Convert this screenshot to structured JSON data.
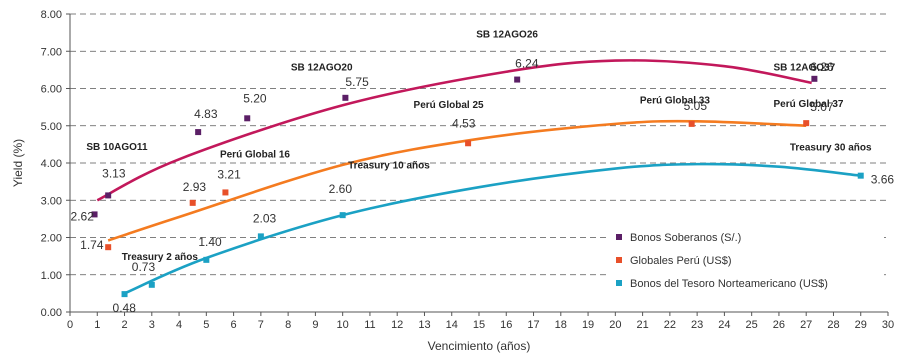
{
  "chart_data": {
    "type": "scatter",
    "xlabel": "Vencimiento (años)",
    "ylabel": "Yield (%)",
    "xlim": [
      0,
      30
    ],
    "ylim": [
      0,
      8
    ],
    "x_ticks": [
      0,
      1,
      2,
      3,
      4,
      5,
      6,
      7,
      8,
      9,
      10,
      11,
      12,
      13,
      14,
      15,
      16,
      17,
      18,
      19,
      20,
      21,
      22,
      23,
      24,
      25,
      26,
      27,
      28,
      29,
      30
    ],
    "y_ticks": [
      "0.00",
      "1.00",
      "2.00",
      "3.00",
      "4.00",
      "5.00",
      "6.00",
      "7.00",
      "8.00"
    ],
    "grid": "horizontal dashed",
    "legend_position": "bottom-right",
    "series": [
      {
        "name": "Bonos Soberanos (S/.)",
        "color": "#5b1f66",
        "trend_color": "#c2185b",
        "points": [
          {
            "x": 0.9,
            "y": 2.62,
            "label": "2.62"
          },
          {
            "x": 1.4,
            "y": 3.13,
            "label": "3.13"
          },
          {
            "x": 4.7,
            "y": 4.83,
            "label": "4.83"
          },
          {
            "x": 6.5,
            "y": 5.2,
            "label": "5.20"
          },
          {
            "x": 10.1,
            "y": 5.75,
            "label": "5.75"
          },
          {
            "x": 16.4,
            "y": 6.24,
            "label": "6.24"
          },
          {
            "x": 27.3,
            "y": 6.26,
            "label": "6.26"
          }
        ],
        "trend": [
          [
            1,
            3.0
          ],
          [
            4,
            4.1
          ],
          [
            10,
            5.55
          ],
          [
            16,
            6.45
          ],
          [
            20,
            6.75
          ],
          [
            24,
            6.6
          ],
          [
            27.2,
            6.15
          ]
        ]
      },
      {
        "name": "Globales Perú (US$)",
        "color": "#e8502a",
        "trend_color": "#f47b20",
        "points": [
          {
            "x": 1.4,
            "y": 1.74,
            "label": "1.74"
          },
          {
            "x": 4.5,
            "y": 2.93,
            "label": "2.93"
          },
          {
            "x": 5.7,
            "y": 3.21,
            "label": "3.21"
          },
          {
            "x": 14.6,
            "y": 4.53,
            "label": "4.53"
          },
          {
            "x": 22.8,
            "y": 5.05,
            "label": "5.05"
          },
          {
            "x": 27.0,
            "y": 5.07,
            "label": "5.07"
          }
        ],
        "trend": [
          [
            1.4,
            1.92
          ],
          [
            4,
            2.55
          ],
          [
            10,
            3.95
          ],
          [
            15,
            4.65
          ],
          [
            20,
            5.05
          ],
          [
            23,
            5.12
          ],
          [
            27,
            5.0
          ]
        ]
      },
      {
        "name": "Bonos del Tesoro Norteamericano (US$)",
        "color": "#1ba1c4",
        "trend_color": "#1ba1c4",
        "points": [
          {
            "x": 2.0,
            "y": 0.48,
            "label": "0.48"
          },
          {
            "x": 3.0,
            "y": 0.73,
            "label": "0.73"
          },
          {
            "x": 5.0,
            "y": 1.4,
            "label": "1.40"
          },
          {
            "x": 7.0,
            "y": 2.03,
            "label": "2.03"
          },
          {
            "x": 10.0,
            "y": 2.6,
            "label": "2.60"
          },
          {
            "x": 29.0,
            "y": 3.66,
            "label": "3.66"
          }
        ],
        "trend": [
          [
            2,
            0.5
          ],
          [
            5,
            1.45
          ],
          [
            10,
            2.6
          ],
          [
            15,
            3.35
          ],
          [
            20,
            3.85
          ],
          [
            23,
            3.97
          ],
          [
            26,
            3.9
          ],
          [
            29,
            3.66
          ]
        ]
      }
    ],
    "annotations": [
      {
        "text": "SB 10AGO11",
        "x": 0.6,
        "y": 4.35
      },
      {
        "text": "Perú Global 16",
        "x": 5.5,
        "y": 4.15
      },
      {
        "text": "SB 12AGO20",
        "x": 8.1,
        "y": 6.48
      },
      {
        "text": "SB 12AGO26",
        "x": 14.9,
        "y": 7.37
      },
      {
        "text": "Perú Global 25",
        "x": 12.6,
        "y": 5.47
      },
      {
        "text": "Treasury 10 años",
        "x": 10.2,
        "y": 3.85
      },
      {
        "text": "Treasury 2 años",
        "x": 1.9,
        "y": 1.4
      },
      {
        "text": "Perú Global 33",
        "x": 20.9,
        "y": 5.6
      },
      {
        "text": "SB 12AGO37",
        "x": 25.8,
        "y": 6.48
      },
      {
        "text": "Perú Global 37",
        "x": 25.8,
        "y": 5.5
      },
      {
        "text": "Treasury 30 años",
        "x": 26.4,
        "y": 4.33
      }
    ]
  }
}
